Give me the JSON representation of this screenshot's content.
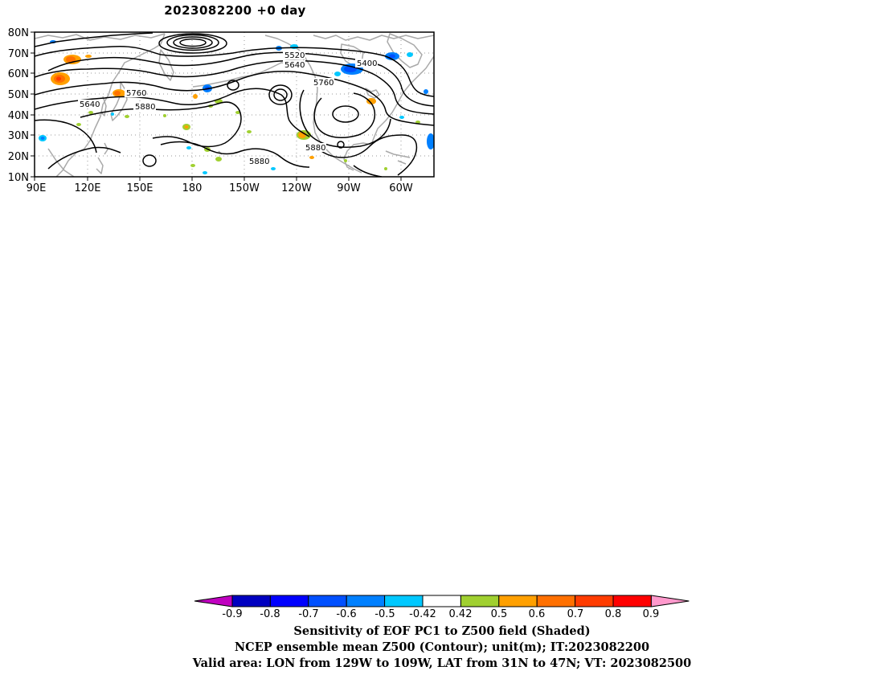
{
  "title": "2023082200  +0 day",
  "map": {
    "lat_labels": [
      "80N",
      "70N",
      "60N",
      "50N",
      "40N",
      "30N",
      "20N",
      "10N"
    ],
    "lon_labels": [
      "90E",
      "120E",
      "150E",
      "180",
      "150W",
      "120W",
      "90W",
      "60W"
    ],
    "contour_labels": [
      "5520",
      "5640",
      "5400",
      "5760",
      "5640",
      "5760",
      "5880",
      "5880",
      "5880"
    ],
    "coastline_color": "#a9a9a9",
    "contour_color": "#000000"
  },
  "colorbar": {
    "labels": [
      "-0.9",
      "-0.8",
      "-0.7",
      "-0.6",
      "-0.5",
      "-0.42",
      "0.42",
      "0.5",
      "0.6",
      "0.7",
      "0.8",
      "0.9"
    ],
    "colors": [
      "#c000c0",
      "#0000c0",
      "#0000ff",
      "#0050ff",
      "#0080ff",
      "#00c8ff",
      "#ffffff",
      "#a0d030",
      "#ffa000",
      "#ff7000",
      "#ff3c00",
      "#ff0000",
      "#ff99cc"
    ]
  },
  "caption": {
    "line1": "Sensitivity of EOF PC1 to Z500 field (Shaded)",
    "line2": "NCEP ensemble mean Z500 (Contour); unit(m); IT:2023082200",
    "line3": "Valid area: LON from 129W to 109W, LAT from 31N to 47N; VT: 2023082500"
  }
}
